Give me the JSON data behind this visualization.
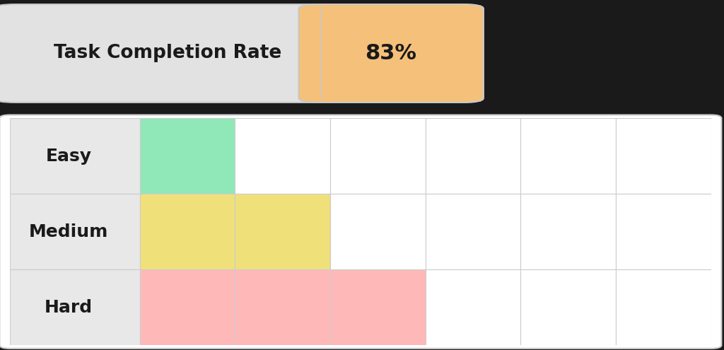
{
  "figure_bg": "#1a1a1a",
  "top_widget": {
    "label": "Task Completion Rate",
    "value": "83%",
    "label_bg": "#e2e2e2",
    "value_bg": "#f5c07a",
    "text_color": "#1a1a1a",
    "border_color": "#c8c8c8",
    "label_fontsize": 19,
    "value_fontsize": 22
  },
  "grid": {
    "rows": [
      "Easy",
      "Medium",
      "Hard"
    ],
    "num_cols": 6,
    "label_bg": "#e8e8e8",
    "cell_bg": "#ffffff",
    "border_color": "#cccccc",
    "grid_bg": "#ffffff",
    "outer_border": "#cccccc",
    "colors": {
      "Easy": [
        "#90e8b8",
        "#ffffff",
        "#ffffff",
        "#ffffff",
        "#ffffff",
        "#ffffff"
      ],
      "Medium": [
        "#f0e07a",
        "#f0e07a",
        "#ffffff",
        "#ffffff",
        "#ffffff",
        "#ffffff"
      ],
      "Hard": [
        "#ffb8b8",
        "#ffb8b8",
        "#ffb8b8",
        "#ffffff",
        "#ffffff",
        "#ffffff"
      ]
    },
    "row_label_fontsize": 18,
    "row_label_fontweight": "bold"
  }
}
